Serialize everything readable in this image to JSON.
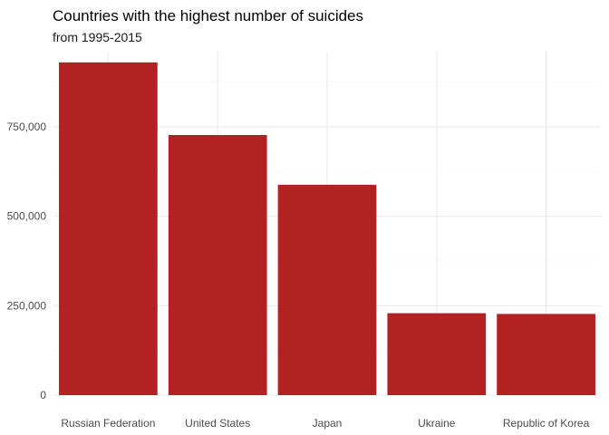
{
  "chart_data": {
    "type": "bar",
    "title": "Countries with the highest number of suicides",
    "subtitle": "from 1995-2015",
    "xlabel": "",
    "ylabel": "",
    "categories": [
      "Russian Federation",
      "United States",
      "Japan",
      "Ukraine",
      "Republic of Korea"
    ],
    "values": [
      930000,
      727000,
      588000,
      229000,
      227000
    ],
    "ylim": [
      0,
      960000
    ],
    "yticks": [
      0,
      250000,
      500000,
      750000
    ],
    "ytick_labels": [
      "0",
      "250,000",
      "500,000",
      "750,000"
    ],
    "grid": true,
    "legend": "none"
  },
  "colors": {
    "bar": "#b22222",
    "grid_major": "#ebebeb",
    "grid_minor": "#f4f4f4",
    "tick_label": "#4d4d4d"
  }
}
